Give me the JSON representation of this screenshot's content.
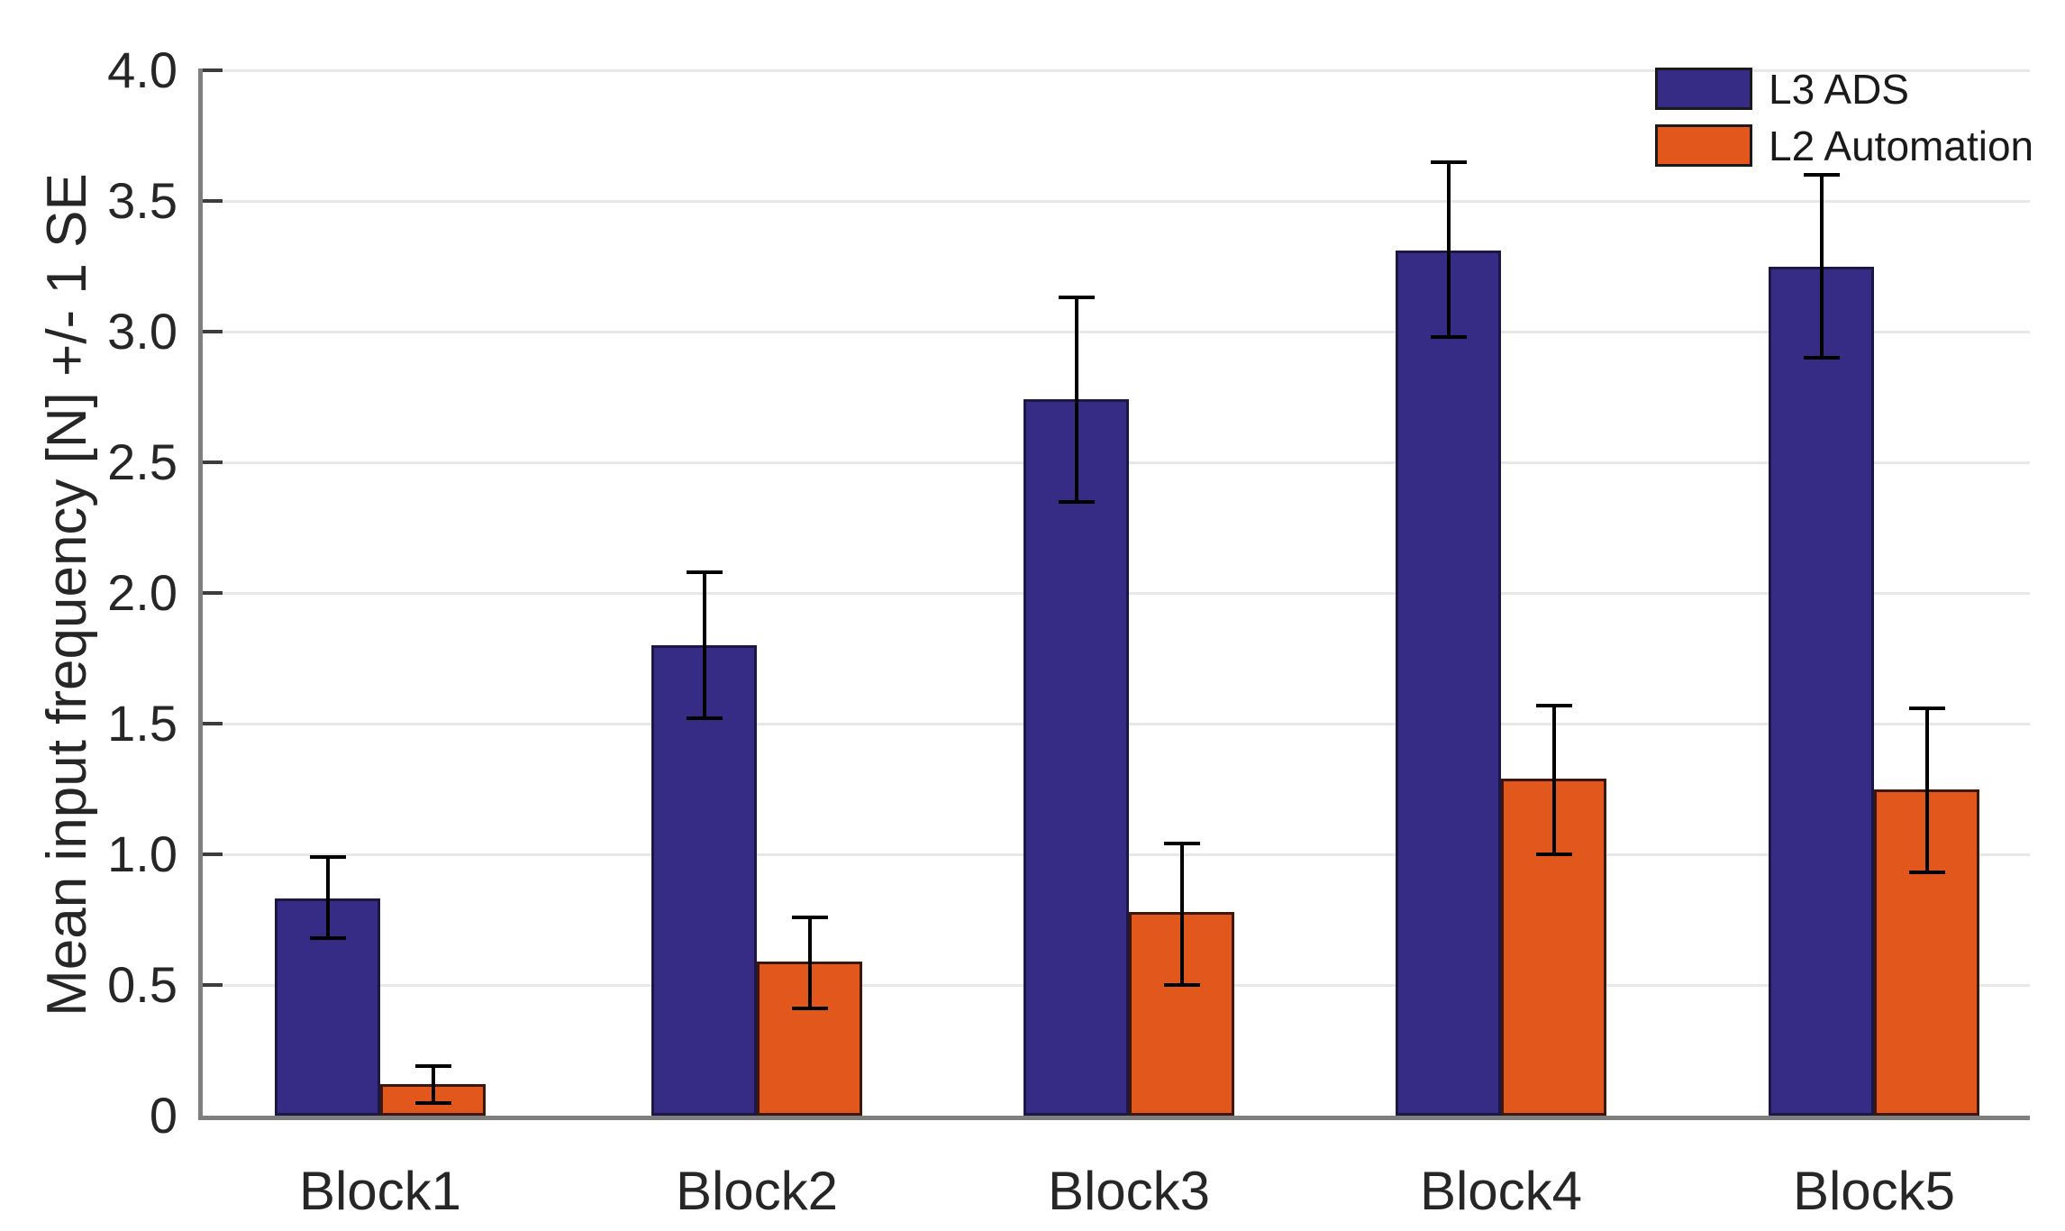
{
  "figure": {
    "background": "#ffffff"
  },
  "axis": {
    "y_label": "Mean input frequency [N] +/- 1 SE",
    "y_ticks": [
      {
        "value": 0,
        "label": "0"
      },
      {
        "value": 0.5,
        "label": "0.5"
      },
      {
        "value": 1.0,
        "label": "1.0"
      },
      {
        "value": 1.5,
        "label": "1.5"
      },
      {
        "value": 2.0,
        "label": "2.0"
      },
      {
        "value": 2.5,
        "label": "2.5"
      },
      {
        "value": 3.0,
        "label": "3.0"
      },
      {
        "value": 3.5,
        "label": "3.5"
      },
      {
        "value": 4.0,
        "label": "4.0"
      }
    ],
    "grid_color": "#e8e8e8",
    "axis_color": "#7f7f7f",
    "tick_color": "#3c3c3c",
    "text_color": "#262626"
  },
  "legend": {
    "position": "top-right",
    "entries": [
      {
        "label": "L3 ADS",
        "color": "#362c86"
      },
      {
        "label": "L2 Automation",
        "color": "#e2571b"
      }
    ]
  },
  "chart_data": {
    "type": "bar",
    "title": "",
    "xlabel": "",
    "ylabel": "Mean input frequency [N] +/- 1 SE",
    "ylim": [
      0,
      4.0
    ],
    "grid": true,
    "legend_position": "top-right",
    "error_bar_meaning": "+/- 1 SE",
    "categories": [
      "Block1",
      "Block2",
      "Block3",
      "Block4",
      "Block5"
    ],
    "series": [
      {
        "name": "L3 ADS",
        "color": "#362c86",
        "edge_color": "#1c1744",
        "values": [
          0.83,
          1.8,
          2.74,
          3.31,
          3.25
        ],
        "error_upper": [
          0.99,
          2.08,
          3.13,
          3.65,
          3.6
        ],
        "error_lower": [
          0.68,
          1.52,
          2.35,
          2.98,
          2.9
        ]
      },
      {
        "name": "L2 Automation",
        "color": "#e2571b",
        "edge_color": "#3d1708",
        "values": [
          0.12,
          0.59,
          0.78,
          1.29,
          1.25
        ],
        "error_upper": [
          0.19,
          0.76,
          1.04,
          1.57,
          1.56
        ],
        "error_lower": [
          0.05,
          0.41,
          0.5,
          1.0,
          0.93
        ]
      }
    ]
  }
}
